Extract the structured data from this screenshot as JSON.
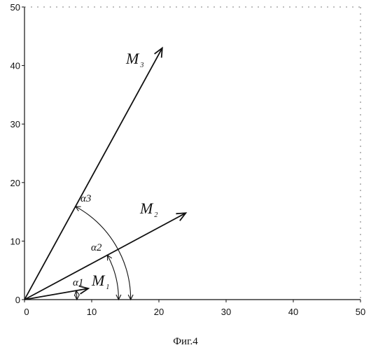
{
  "axes": {
    "xlim": [
      0,
      50
    ],
    "ylim": [
      0,
      50
    ],
    "x_ticks": [
      0,
      10,
      20,
      30,
      40,
      50
    ],
    "y_ticks": [
      0,
      10,
      20,
      30,
      40,
      50
    ],
    "x_tick_labels": [
      "0",
      "10",
      "20",
      "30",
      "40",
      "50"
    ],
    "y_tick_labels": [
      "0",
      "10",
      "20",
      "30",
      "40",
      "50"
    ]
  },
  "vectors": [
    {
      "id": "m1",
      "name": "M",
      "sub": "1",
      "end": [
        9.5,
        1.9
      ]
    },
    {
      "id": "m2",
      "name": "M",
      "sub": "2",
      "end": [
        24,
        14.8
      ]
    },
    {
      "id": "m3",
      "name": "M",
      "sub": "3",
      "end": [
        20.5,
        43
      ]
    }
  ],
  "angles": [
    {
      "id": "a1",
      "label": "α1",
      "radius": 7.8,
      "to_vector": "m1"
    },
    {
      "id": "a2",
      "label": "α2",
      "radius": 14,
      "to_vector": "m2"
    },
    {
      "id": "a3",
      "label": "α3",
      "radius": 15.8,
      "to_vector": "m3"
    }
  ],
  "caption": "Фиг.4"
}
